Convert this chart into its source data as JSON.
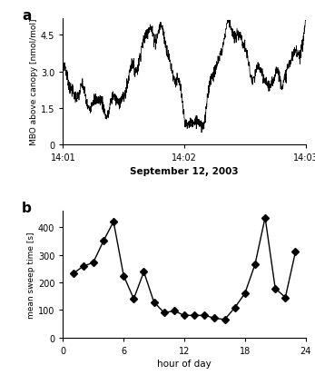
{
  "panel_a_label": "a",
  "panel_b_label": "b",
  "panel_a": {
    "ylabel": "MBO above canopy [nmol/mol]",
    "xlabel": "September 12, 2003",
    "xtick_labels": [
      "14:01",
      "14:02",
      "14:03"
    ],
    "xtick_positions": [
      0.0,
      0.5,
      1.0
    ],
    "yticks": [
      0,
      1.5,
      3.0,
      4.5
    ],
    "ylim": [
      0,
      5.2
    ],
    "xlim": [
      0,
      1
    ]
  },
  "panel_b": {
    "ylabel": "mean sweep time [s]",
    "xlabel": "hour of day",
    "xticks": [
      0,
      6,
      12,
      18,
      24
    ],
    "yticks": [
      0,
      100,
      200,
      300,
      400
    ],
    "ylim": [
      0,
      460
    ],
    "xlim": [
      0,
      24
    ],
    "x": [
      1,
      2,
      3,
      4,
      5,
      6,
      7,
      8,
      9,
      10,
      11,
      12,
      13,
      14,
      15,
      16,
      17,
      18,
      19,
      20,
      21,
      22,
      23
    ],
    "y": [
      232,
      258,
      272,
      350,
      420,
      224,
      140,
      238,
      128,
      90,
      96,
      80,
      80,
      80,
      70,
      65,
      108,
      160,
      265,
      435,
      178,
      145,
      310
    ]
  },
  "line_color": "#000000",
  "marker": "D",
  "markersize": 4,
  "linewidth": 1.0,
  "background_color": "#ffffff"
}
